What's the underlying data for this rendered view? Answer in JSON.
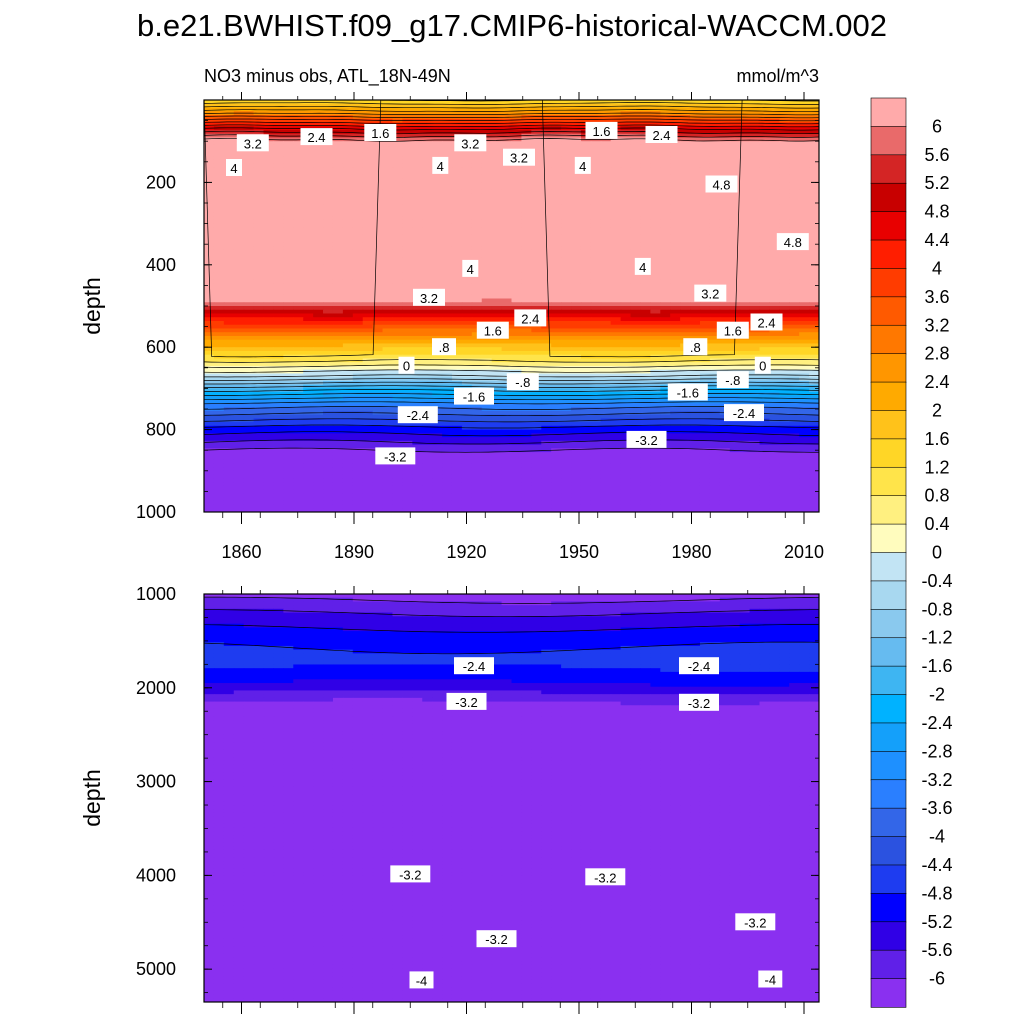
{
  "chart_data": {
    "type": "contour",
    "title": "b.e21.BWHIST.f09_g17.CMIP6-historical-WACCM.002",
    "subtitle_left": "NO3 minus obs, ATL_18N-49N",
    "subtitle_right": "mmol/m^3",
    "x_range": [
      1850,
      2014
    ],
    "x_ticks": [
      1860,
      1890,
      1920,
      1950,
      1980,
      2010
    ],
    "ylabel": "depth",
    "panels": [
      {
        "name": "upper",
        "depth_range": [
          0,
          1000
        ],
        "y_ticks": [
          200,
          400,
          600,
          800,
          1000
        ],
        "profile": [
          {
            "depth": 0,
            "value": 0.6
          },
          {
            "depth": 30,
            "value": 1.3
          },
          {
            "depth": 70,
            "value": 2.4
          },
          {
            "depth": 110,
            "value": 3.3
          },
          {
            "depth": 150,
            "value": 4.1
          },
          {
            "depth": 200,
            "value": 4.6
          },
          {
            "depth": 300,
            "value": 4.8
          },
          {
            "depth": 370,
            "value": 4.6
          },
          {
            "depth": 430,
            "value": 4.0
          },
          {
            "depth": 470,
            "value": 3.4
          },
          {
            "depth": 520,
            "value": 2.4
          },
          {
            "depth": 560,
            "value": 1.6
          },
          {
            "depth": 600,
            "value": 0.9
          },
          {
            "depth": 640,
            "value": 0.3
          },
          {
            "depth": 670,
            "value": -0.2
          },
          {
            "depth": 700,
            "value": -0.9
          },
          {
            "depth": 740,
            "value": -1.7
          },
          {
            "depth": 800,
            "value": -2.5
          },
          {
            "depth": 860,
            "value": -3.1
          },
          {
            "depth": 1000,
            "value": -3.4
          }
        ],
        "labels": [
          {
            "text": "3.2",
            "year": 1863,
            "depth": 105
          },
          {
            "text": "2.4",
            "year": 1880,
            "depth": 90
          },
          {
            "text": "1.6",
            "year": 1897,
            "depth": 80
          },
          {
            "text": "3.2",
            "year": 1921,
            "depth": 105
          },
          {
            "text": "1.6",
            "year": 1956,
            "depth": 75
          },
          {
            "text": "2.4",
            "year": 1972,
            "depth": 85
          },
          {
            "text": "4",
            "year": 1858,
            "depth": 165
          },
          {
            "text": "4",
            "year": 1913,
            "depth": 160
          },
          {
            "text": "3.2",
            "year": 1934,
            "depth": 140
          },
          {
            "text": "4",
            "year": 1951,
            "depth": 160
          },
          {
            "text": "4.8",
            "year": 1988,
            "depth": 205
          },
          {
            "text": "4.8",
            "year": 2007,
            "depth": 345
          },
          {
            "text": "4",
            "year": 1921,
            "depth": 410
          },
          {
            "text": "4",
            "year": 1967,
            "depth": 405
          },
          {
            "text": "3.2",
            "year": 1910,
            "depth": 480
          },
          {
            "text": "3.2",
            "year": 1985,
            "depth": 470
          },
          {
            "text": "2.4",
            "year": 1937,
            "depth": 530
          },
          {
            "text": "2.4",
            "year": 2000,
            "depth": 540
          },
          {
            "text": "1.6",
            "year": 1927,
            "depth": 560
          },
          {
            "text": "1.6",
            "year": 1991,
            "depth": 560
          },
          {
            "text": ".8",
            "year": 1914,
            "depth": 600
          },
          {
            "text": ".8",
            "year": 1981,
            "depth": 600
          },
          {
            "text": "0",
            "year": 1904,
            "depth": 645
          },
          {
            "text": "0",
            "year": 1999,
            "depth": 645
          },
          {
            "text": "-.8",
            "year": 1935,
            "depth": 685
          },
          {
            "text": "-.8",
            "year": 1991,
            "depth": 680
          },
          {
            "text": "-1.6",
            "year": 1922,
            "depth": 720
          },
          {
            "text": "-1.6",
            "year": 1979,
            "depth": 710
          },
          {
            "text": "-2.4",
            "year": 1907,
            "depth": 765
          },
          {
            "text": "-2.4",
            "year": 1994,
            "depth": 760
          },
          {
            "text": "-3.2",
            "year": 1901,
            "depth": 865
          },
          {
            "text": "-3.2",
            "year": 1968,
            "depth": 825
          }
        ]
      },
      {
        "name": "lower",
        "depth_range": [
          1000,
          5350
        ],
        "y_ticks": [
          1000,
          2000,
          3000,
          4000,
          5000
        ],
        "profile": [
          {
            "depth": 1000,
            "value": -3.1
          },
          {
            "depth": 1200,
            "value": -2.8
          },
          {
            "depth": 1450,
            "value": -2.5
          },
          {
            "depth": 1700,
            "value": -2.3
          },
          {
            "depth": 1950,
            "value": -2.6
          },
          {
            "depth": 2200,
            "value": -3.1
          },
          {
            "depth": 2500,
            "value": -3.45
          },
          {
            "depth": 2900,
            "value": -3.7
          },
          {
            "depth": 3300,
            "value": -3.5
          },
          {
            "depth": 3900,
            "value": -3.2
          },
          {
            "depth": 4500,
            "value": -3.05
          },
          {
            "depth": 4850,
            "value": -3.25
          },
          {
            "depth": 5050,
            "value": -3.7
          },
          {
            "depth": 5200,
            "value": -4.2
          },
          {
            "depth": 5350,
            "value": -4.9
          }
        ],
        "labels": [
          {
            "text": "-2.4",
            "year": 1922,
            "depth": 1770
          },
          {
            "text": "-2.4",
            "year": 1982,
            "depth": 1770
          },
          {
            "text": "-3.2",
            "year": 1920,
            "depth": 2150
          },
          {
            "text": "-3.2",
            "year": 1982,
            "depth": 2160
          },
          {
            "text": "-3.2",
            "year": 1905,
            "depth": 3990
          },
          {
            "text": "-3.2",
            "year": 1957,
            "depth": 4020
          },
          {
            "text": "-3.2",
            "year": 1928,
            "depth": 4680
          },
          {
            "text": "-3.2",
            "year": 1997,
            "depth": 4500
          },
          {
            "text": "-4",
            "year": 1908,
            "depth": 5120
          },
          {
            "text": "-4",
            "year": 2001,
            "depth": 5110
          }
        ]
      }
    ],
    "colorbar": {
      "tick_labels": [
        "6",
        "5.6",
        "5.2",
        "4.8",
        "4.4",
        "4",
        "3.6",
        "3.2",
        "2.8",
        "2.4",
        "2",
        "1.6",
        "1.2",
        "0.8",
        "0.4",
        "0",
        "-0.4",
        "-0.8",
        "-1.2",
        "-1.6",
        "-2",
        "-2.4",
        "-2.8",
        "-3.2",
        "-3.6",
        "-4",
        "-4.4",
        "-4.8",
        "-5.2",
        "-5.6",
        "-6"
      ],
      "bin_colors": [
        "#FFAAAA",
        "#E96A6A",
        "#D42525",
        "#C80000",
        "#E80000",
        "#FF1E00",
        "#FF3C00",
        "#FF5A00",
        "#FF7800",
        "#FF9600",
        "#FFAA00",
        "#FFC21A",
        "#FFD626",
        "#FFE44A",
        "#FFF080",
        "#FFFCBE",
        "#C2E4F4",
        "#A8D8F0",
        "#8AC9EE",
        "#66BBF0",
        "#3EB5F2",
        "#00B2FF",
        "#14A0FA",
        "#1E90FF",
        "#2A7FFF",
        "#3366E8",
        "#2B52E0",
        "#1E3CF0",
        "#0000FF",
        "#3000E6",
        "#6020E8",
        "#8A30F0"
      ]
    }
  }
}
